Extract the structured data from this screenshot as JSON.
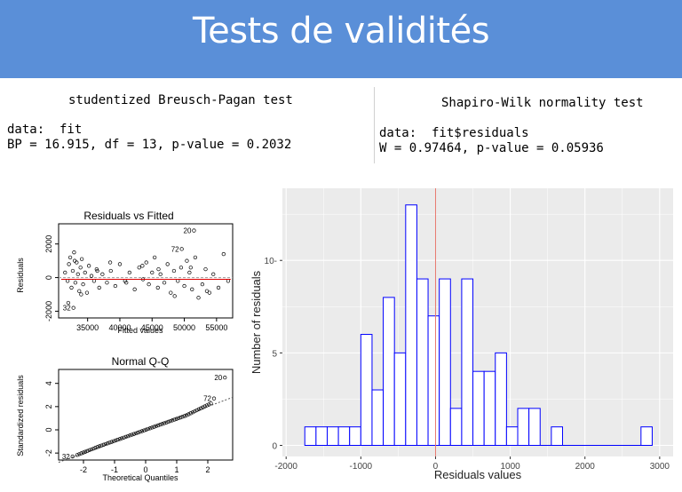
{
  "slide": {
    "title": "Tests de validités"
  },
  "bp_test": {
    "title": "studentized Breusch-Pagan test",
    "data_line": "data:  fit",
    "result_line": "BP = 16.915, df = 13, p-value = 0.2032"
  },
  "sw_test": {
    "title": "Shapiro-Wilk normality test",
    "data_line": "data:  fit$residuals",
    "result_line": "W = 0.97464, p-value = 0.05936"
  },
  "chart_data": [
    {
      "type": "scatter",
      "title": "Residuals vs Fitted",
      "xlabel": "Fitted values",
      "ylabel": "Residuals",
      "xticks": [
        "35000",
        "40000",
        "45000",
        "50000",
        "55000"
      ],
      "yticks": [
        "-2000",
        "0",
        "2000"
      ],
      "xlim": [
        30500,
        57500
      ],
      "ylim": [
        -2400,
        3200
      ],
      "labeled_points": [
        {
          "label": "20",
          "x": 51500,
          "y": 2800
        },
        {
          "label": "72",
          "x": 49600,
          "y": 1700
        },
        {
          "label": "32",
          "x": 32800,
          "y": -1800
        }
      ],
      "x": [
        31500,
        31900,
        32100,
        32300,
        32500,
        32700,
        32900,
        33100,
        33300,
        33500,
        33700,
        33900,
        34100,
        34300,
        34600,
        34900,
        35200,
        35600,
        36000,
        36400,
        36800,
        37300,
        38000,
        38600,
        39300,
        40000,
        40800,
        41500,
        42300,
        43000,
        43600,
        44100,
        44500,
        45000,
        45400,
        45900,
        46300,
        46900,
        47400,
        47900,
        48400,
        49000,
        49500,
        50000,
        50400,
        50800,
        51200,
        51700,
        52200,
        52800,
        53300,
        53900,
        54500,
        55300,
        56100,
        56800,
        32000,
        33000,
        34000,
        36500,
        38500,
        41000,
        43500,
        46000,
        48500,
        51000,
        53500
      ],
      "y": [
        300,
        -200,
        800,
        1200,
        -600,
        400,
        1500,
        -300,
        900,
        200,
        -800,
        600,
        1100,
        -400,
        300,
        -900,
        700,
        100,
        -200,
        500,
        -600,
        200,
        -300,
        400,
        -500,
        800,
        -200,
        300,
        -700,
        600,
        -100,
        900,
        -400,
        300,
        1200,
        -600,
        200,
        -300,
        800,
        -900,
        400,
        -200,
        600,
        -500,
        1000,
        300,
        -700,
        1200,
        -1200,
        -400,
        500,
        -900,
        200,
        -600,
        1400,
        -200,
        -1500,
        1000,
        -1000,
        400,
        900,
        -300,
        700,
        500,
        -1100,
        600,
        -800
      ],
      "fit_line_y": [
        -100,
        -100
      ]
    },
    {
      "type": "scatter",
      "title": "Normal Q-Q",
      "xlabel": "Theoretical Quantiles",
      "ylabel": "Standardized residuals",
      "xticks": [
        "-2",
        "-1",
        "0",
        "1",
        "2"
      ],
      "yticks": [
        "-2",
        "0",
        "2",
        "4"
      ],
      "xlim": [
        -2.8,
        2.8
      ],
      "ylim": [
        -2.6,
        5.2
      ],
      "labeled_points": [
        {
          "label": "20",
          "x": 2.55,
          "y": 4.5
        },
        {
          "label": "72",
          "x": 2.2,
          "y": 2.7
        },
        {
          "label": "32",
          "x": -2.35,
          "y": -2.3
        }
      ],
      "reference_line": {
        "slope": 1.0,
        "intercept": 0
      }
    },
    {
      "type": "bar",
      "title": "",
      "xlabel": "Residuals values",
      "ylabel": "Number of residuals",
      "xticks": [
        -2000,
        -1000,
        0,
        1000,
        2000,
        3000
      ],
      "yticks": [
        0,
        5,
        10
      ],
      "xlim": [
        -2050,
        3180
      ],
      "ylim": [
        -0.6,
        13.9
      ],
      "bin_width": 150,
      "bin_starts": [
        -1750,
        -1600,
        -1450,
        -1300,
        -1150,
        -1000,
        -850,
        -700,
        -550,
        -400,
        -250,
        -100,
        50,
        200,
        350,
        500,
        650,
        800,
        950,
        1100,
        1250,
        1400,
        1550,
        1700,
        1850,
        2000,
        2150,
        2300,
        2450,
        2600,
        2750
      ],
      "values": [
        1,
        1,
        1,
        1,
        1,
        6,
        3,
        8,
        5,
        13,
        9,
        7,
        9,
        2,
        9,
        4,
        4,
        5,
        1,
        2,
        2,
        0,
        1,
        0,
        0,
        0,
        0,
        0,
        0,
        0,
        1
      ],
      "vline_x": 0,
      "colors": {
        "bar_edge": "#0000ff",
        "vline": "#e8786d",
        "panel_bg": "#ebebeb",
        "grid": "#ffffff"
      }
    }
  ]
}
